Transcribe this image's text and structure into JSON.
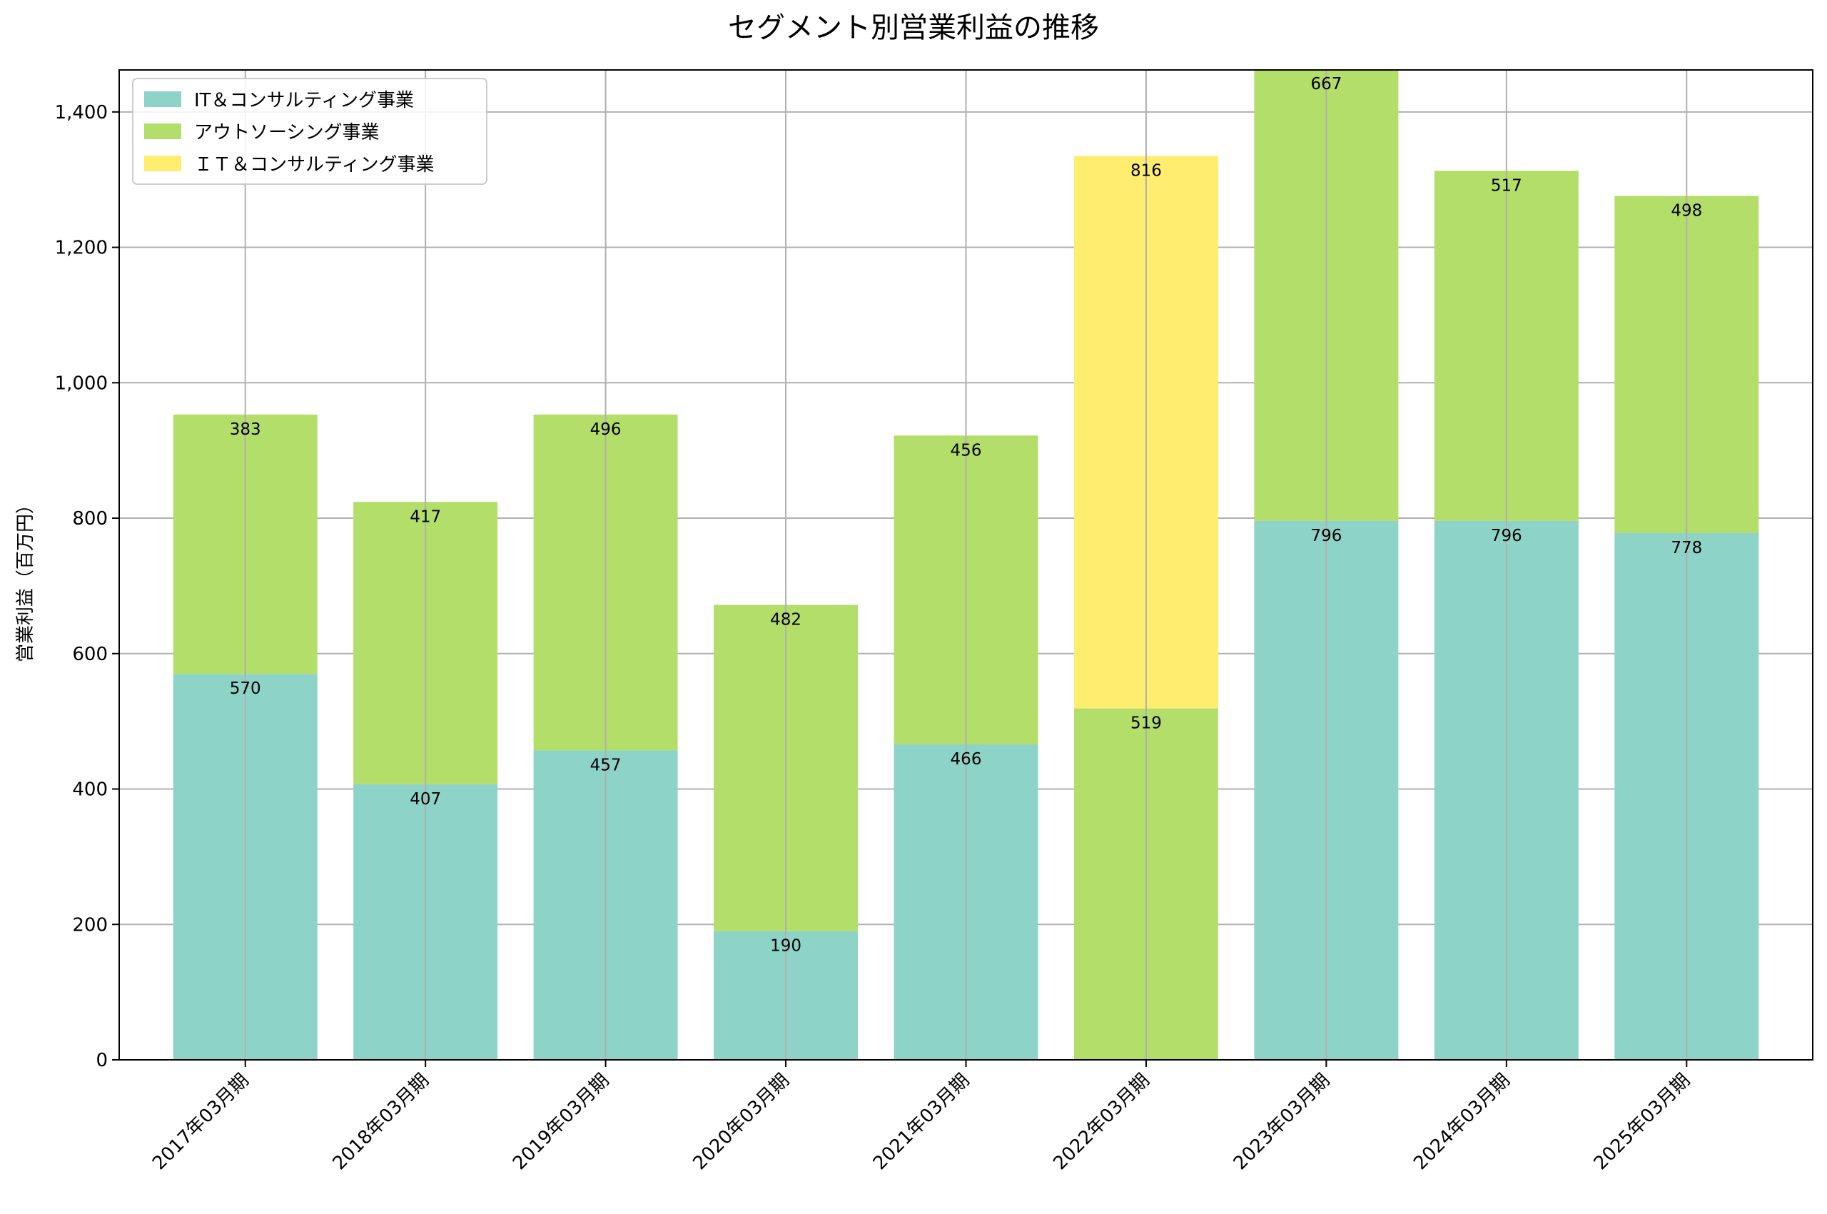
{
  "chart_data": {
    "type": "bar",
    "stacked": true,
    "title": "セグメント別営業利益の推移",
    "xlabel": "",
    "ylabel": "営業利益（百万円）",
    "ylim": [
      0,
      1462
    ],
    "yticks": [
      0,
      200,
      400,
      600,
      800,
      1000,
      1200,
      1400
    ],
    "ytick_labels": [
      "0",
      "200",
      "400",
      "600",
      "800",
      "1,000",
      "1,200",
      "1,400"
    ],
    "grid": true,
    "legend_position": "top-left",
    "categories": [
      "2017年03月期",
      "2018年03月期",
      "2019年03月期",
      "2020年03月期",
      "2021年03月期",
      "2022年03月期",
      "2023年03月期",
      "2024年03月期",
      "2025年03月期"
    ],
    "series": [
      {
        "name": "IT＆コンサルティング事業",
        "color": "#8dd3c7",
        "values": [
          570,
          407,
          457,
          190,
          466,
          null,
          796,
          796,
          778
        ]
      },
      {
        "name": "アウトソーシング事業",
        "color": "#b3de69",
        "values": [
          383,
          417,
          496,
          482,
          456,
          519,
          667,
          517,
          498
        ]
      },
      {
        "name": "ＩＴ＆コンサルティング事業",
        "color": "#ffed6f",
        "values": [
          null,
          null,
          null,
          null,
          null,
          816,
          null,
          null,
          null
        ]
      }
    ]
  }
}
